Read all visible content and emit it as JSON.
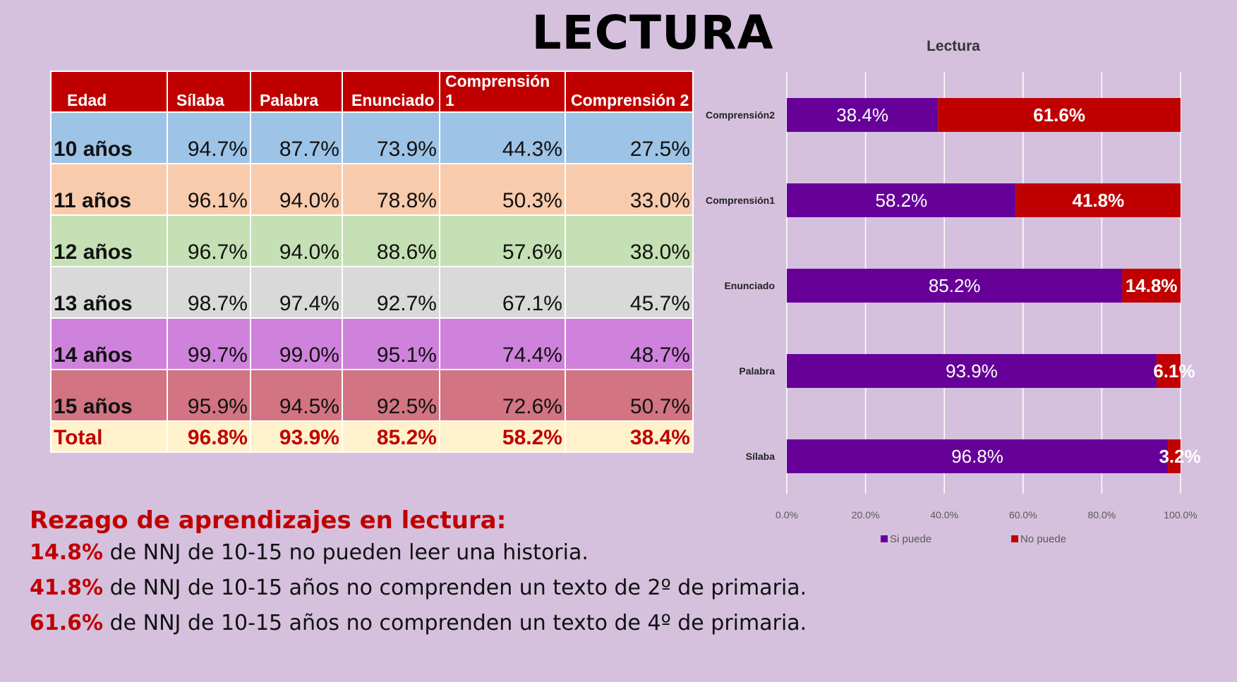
{
  "slide_title": "LECTURA",
  "table": {
    "headers": [
      "Edad",
      "Sílaba",
      "Palabra",
      "Enunciado",
      "Comprensión 1",
      "Comprensión 2"
    ],
    "rows": [
      {
        "age": "10 años",
        "values": [
          "94.7%",
          "87.7%",
          "73.9%",
          "44.3%",
          "27.5%"
        ]
      },
      {
        "age": "11 años",
        "values": [
          "96.1%",
          "94.0%",
          "78.8%",
          "50.3%",
          "33.0%"
        ]
      },
      {
        "age": "12 años",
        "values": [
          "96.7%",
          "94.0%",
          "88.6%",
          "57.6%",
          "38.0%"
        ]
      },
      {
        "age": "13 años",
        "values": [
          "98.7%",
          "97.4%",
          "92.7%",
          "67.1%",
          "45.7%"
        ]
      },
      {
        "age": "14 años",
        "values": [
          "99.7%",
          "99.0%",
          "95.1%",
          "74.4%",
          "48.7%"
        ]
      },
      {
        "age": "15 años",
        "values": [
          "95.9%",
          "94.5%",
          "92.5%",
          "72.6%",
          "50.7%"
        ]
      }
    ],
    "total": {
      "label": "Total",
      "values": [
        "96.8%",
        "93.9%",
        "85.2%",
        "58.2%",
        "38.4%"
      ]
    },
    "row_colors": [
      "#9dc3e6",
      "#f8cbad",
      "#c5e0b4",
      "#d9d9d9",
      "#cf82dc",
      "#d27481"
    ]
  },
  "chart_data": {
    "type": "bar",
    "orientation": "horizontal",
    "stacked": true,
    "title": "Lectura",
    "categories": [
      "Comprensión2",
      "Comprensión1",
      "Enunciado",
      "Palabra",
      "Sílaba"
    ],
    "series": [
      {
        "name": "Si puede",
        "color": "#660099",
        "values": [
          38.4,
          58.2,
          85.2,
          93.9,
          96.8
        ],
        "labels": [
          "38.4%",
          "58.2%",
          "85.2%",
          "93.9%",
          "96.8%"
        ]
      },
      {
        "name": "No puede",
        "color": "#c00000",
        "values": [
          61.6,
          41.8,
          14.8,
          6.1,
          3.2
        ],
        "labels": [
          "61.6%",
          "41.8%",
          "14.8%",
          "6.1%",
          "3.2%"
        ]
      }
    ],
    "xlim": [
      0,
      100
    ],
    "x_ticks": [
      "0.0%",
      "20.0%",
      "40.0%",
      "60.0%",
      "80.0%",
      "100.0%"
    ],
    "grid": true,
    "legend": "bottom"
  },
  "summary": {
    "heading": "Rezago de aprendizajes en lectura:",
    "lines": [
      {
        "pct": "14.8%",
        "text": " de NNJ de 10-15 no pueden leer una historia."
      },
      {
        "pct": "41.8%",
        "text": " de NNJ de 10-15 años no comprenden un texto de 2º de primaria."
      },
      {
        "pct": "61.6%",
        "text": " de NNJ de 10-15 años no comprenden un texto de 4º de primaria."
      }
    ]
  }
}
